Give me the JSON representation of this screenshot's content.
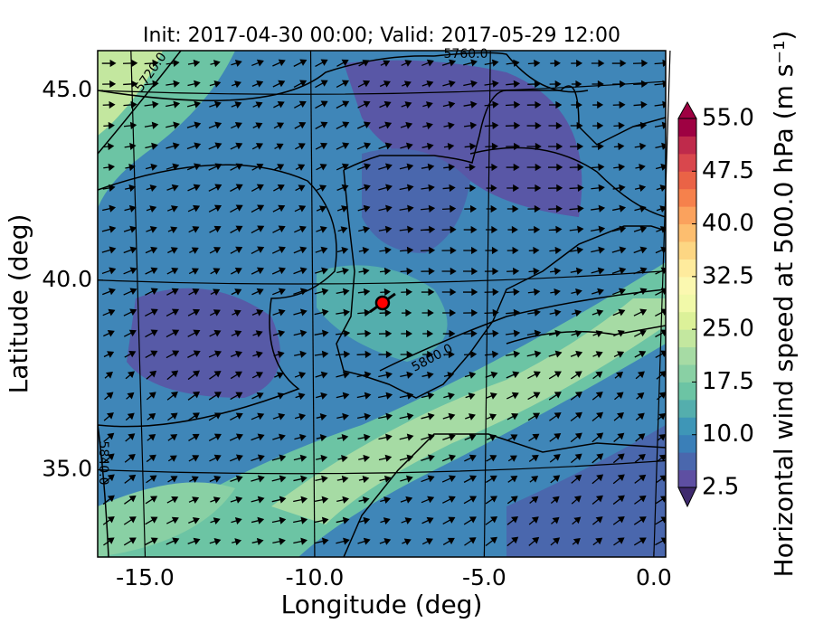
{
  "title": "Init: 2017-04-30 00:00; Valid: 2017-05-29 12:00",
  "map": {
    "xlabel": "Longitude (deg)",
    "ylabel": "Latitude (deg)",
    "xlim": [
      -16.4,
      0.35
    ],
    "ylim": [
      32.7,
      46.05
    ],
    "xticks": [
      {
        "value": -15,
        "label": "-15.0"
      },
      {
        "value": -10,
        "label": "-10.0"
      },
      {
        "value": -5,
        "label": "-5.0"
      },
      {
        "value": 0,
        "label": "0.0"
      }
    ],
    "yticks": [
      {
        "value": 35,
        "label": "35.0"
      },
      {
        "value": 40,
        "label": "40.0"
      },
      {
        "value": 45,
        "label": "45.0"
      }
    ],
    "marker": {
      "lon": -8.0,
      "lat": 39.4,
      "color": "#ff0000"
    },
    "contour_labels": [
      "5720.0",
      "5760.0",
      "5800.0",
      "5840.0"
    ]
  },
  "colorbar": {
    "label": "Horizontal wind speed at 500.0 hPa (m s⁻¹)",
    "lim": [
      2.5,
      55
    ],
    "ticks": [
      {
        "value": 2.5,
        "label": "2.5"
      },
      {
        "value": 10,
        "label": "10.0"
      },
      {
        "value": 17.5,
        "label": "17.5"
      },
      {
        "value": 25,
        "label": "25.0"
      },
      {
        "value": 32.5,
        "label": "32.5"
      },
      {
        "value": 40,
        "label": "40.0"
      },
      {
        "value": 47.5,
        "label": "47.5"
      },
      {
        "value": 55,
        "label": "55.0"
      }
    ],
    "colors": [
      "#5e4fa2",
      "#4a67ad",
      "#3a7fb8",
      "#3e96b7",
      "#54aead",
      "#6cc4a4",
      "#89d0a4",
      "#a6dba4",
      "#c3e79f",
      "#dcf199",
      "#f1f9a9",
      "#fbf8b0",
      "#feeb9d",
      "#fdd683",
      "#fdbe6f",
      "#fba25d",
      "#f6814c",
      "#ea6346",
      "#d9474d",
      "#bf2a4b",
      "#9e0142"
    ]
  }
}
